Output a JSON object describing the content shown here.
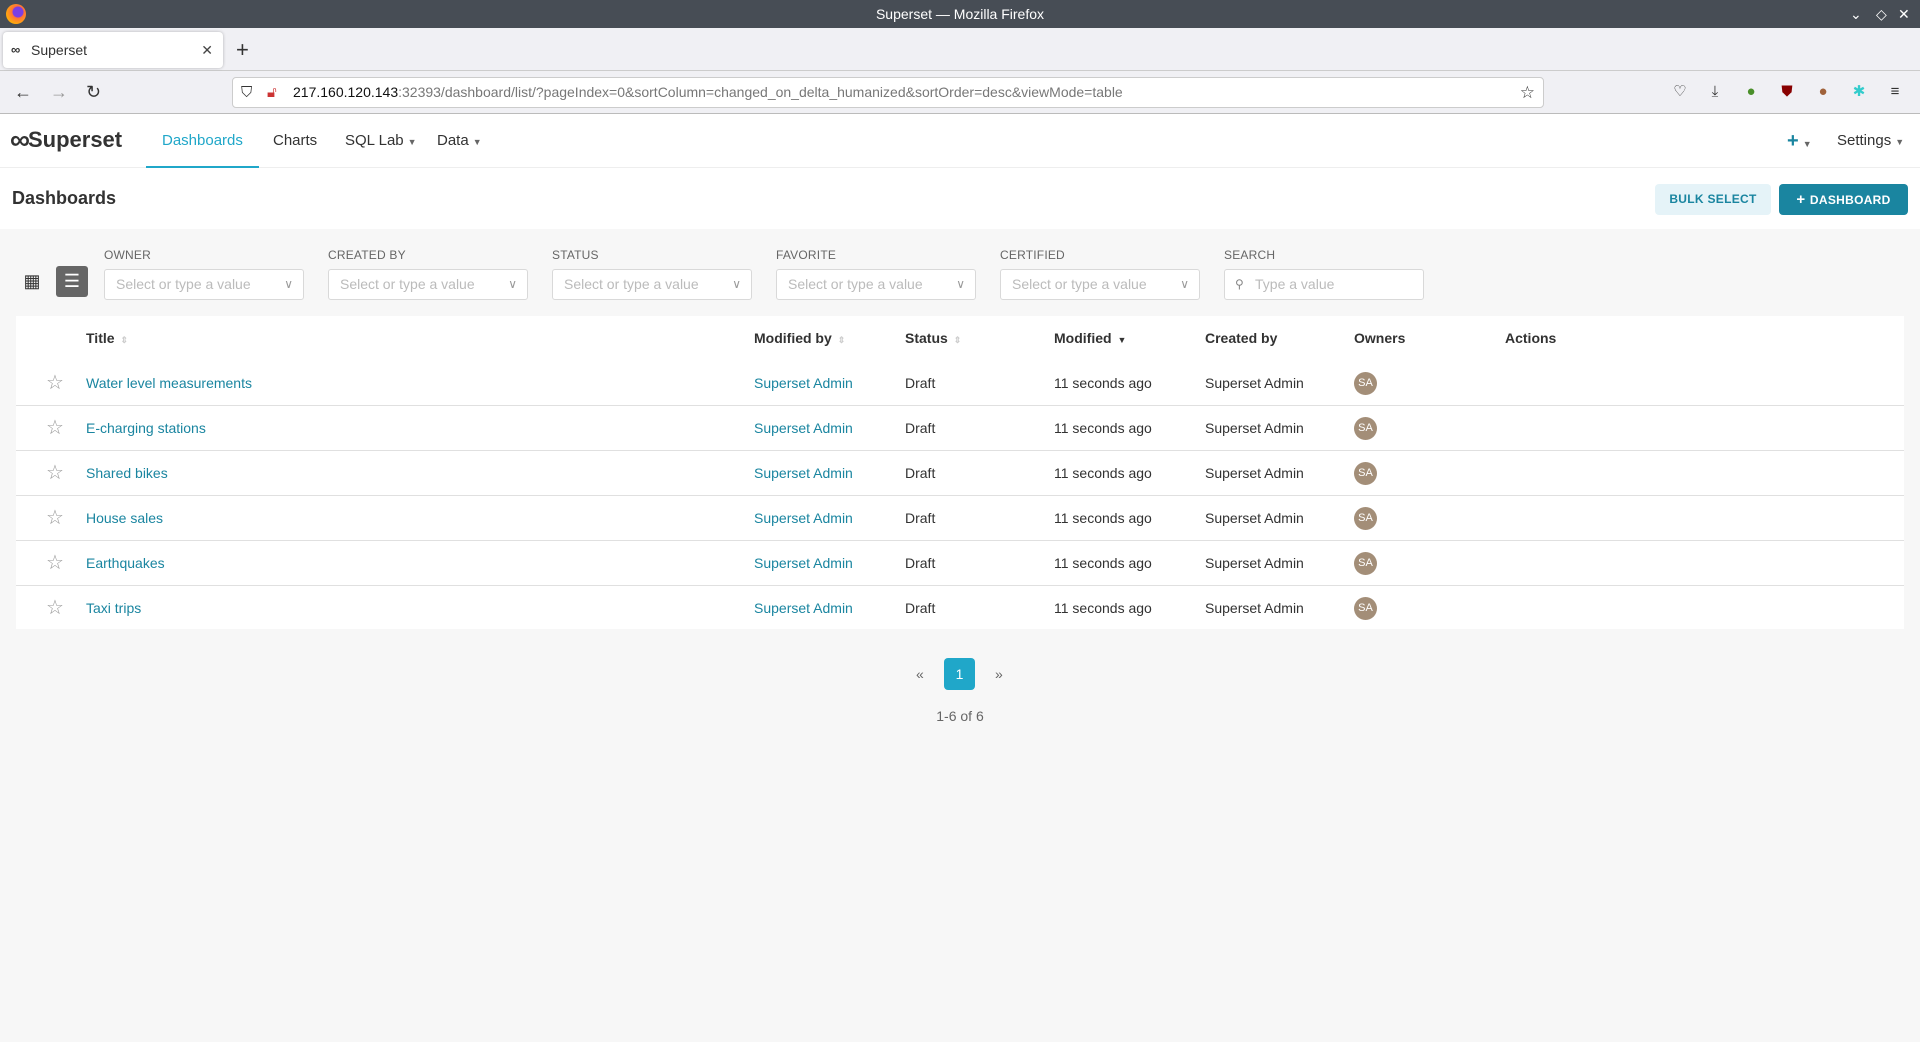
{
  "window": {
    "title": "Superset — Mozilla Firefox"
  },
  "browser": {
    "tab_title": "Superset",
    "url_host": "217.160.120.143",
    "url_rest": ":32393/dashboard/list/?pageIndex=0&sortColumn=changed_on_delta_humanized&sortOrder=desc&viewMode=table"
  },
  "nav": {
    "brand": "Superset",
    "items": [
      {
        "label": "Dashboards",
        "active": true
      },
      {
        "label": "Charts"
      },
      {
        "label": "SQL Lab",
        "dropdown": true
      },
      {
        "label": "Data",
        "dropdown": true
      }
    ],
    "settings": "Settings"
  },
  "page": {
    "title": "Dashboards",
    "bulk_select": "BULK SELECT",
    "add_dashboard": "DASHBOARD"
  },
  "filters": [
    {
      "label": "OWNER",
      "placeholder": "Select or type a value"
    },
    {
      "label": "CREATED BY",
      "placeholder": "Select or type a value"
    },
    {
      "label": "STATUS",
      "placeholder": "Select or type a value"
    },
    {
      "label": "FAVORITE",
      "placeholder": "Select or type a value"
    },
    {
      "label": "CERTIFIED",
      "placeholder": "Select or type a value"
    }
  ],
  "search": {
    "label": "SEARCH",
    "placeholder": "Type a value"
  },
  "table": {
    "columns": [
      "Title",
      "Modified by",
      "Status",
      "Modified",
      "Created by",
      "Owners",
      "Actions"
    ],
    "rows": [
      {
        "title": "Water level measurements",
        "modified_by": "Superset Admin",
        "status": "Draft",
        "modified": "11 seconds ago",
        "created_by": "Superset Admin",
        "owner": "SA"
      },
      {
        "title": "E-charging stations",
        "modified_by": "Superset Admin",
        "status": "Draft",
        "modified": "11 seconds ago",
        "created_by": "Superset Admin",
        "owner": "SA"
      },
      {
        "title": "Shared bikes",
        "modified_by": "Superset Admin",
        "status": "Draft",
        "modified": "11 seconds ago",
        "created_by": "Superset Admin",
        "owner": "SA"
      },
      {
        "title": "House sales",
        "modified_by": "Superset Admin",
        "status": "Draft",
        "modified": "11 seconds ago",
        "created_by": "Superset Admin",
        "owner": "SA"
      },
      {
        "title": "Earthquakes",
        "modified_by": "Superset Admin",
        "status": "Draft",
        "modified": "11 seconds ago",
        "created_by": "Superset Admin",
        "owner": "SA"
      },
      {
        "title": "Taxi trips",
        "modified_by": "Superset Admin",
        "status": "Draft",
        "modified": "11 seconds ago",
        "created_by": "Superset Admin",
        "owner": "SA"
      }
    ]
  },
  "pagination": {
    "prev": "«",
    "current": "1",
    "next": "»",
    "summary": "1-6 of 6"
  },
  "colors": {
    "accent": "#20a7c9",
    "primary": "#1a85a0",
    "avatar": "#a38e78"
  }
}
